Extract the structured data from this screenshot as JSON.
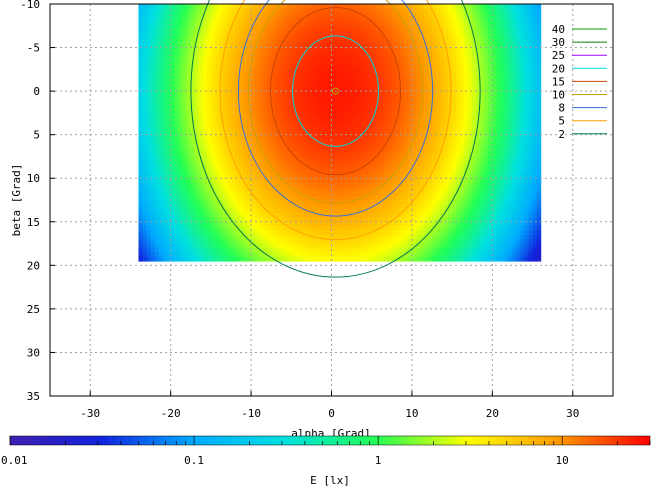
{
  "chart_data": {
    "type": "heatmap",
    "title": "",
    "xlabel": "alpha [Grad]",
    "ylabel": "beta [Grad]",
    "xlim": [
      -35,
      35
    ],
    "ylim": [
      -10,
      35
    ],
    "y_axis_inverted": true,
    "x_ticks": [
      "-30",
      "-20",
      "-10",
      "0",
      "10",
      "20",
      "30"
    ],
    "y_ticks": [
      "-10",
      "-5",
      "0",
      "5",
      "10",
      "15",
      "20",
      "25",
      "30",
      "35"
    ],
    "grid": true,
    "data_extent": {
      "alpha": [
        -24,
        26
      ],
      "beta": [
        -10,
        19.5
      ]
    },
    "peak": {
      "alpha": 0.5,
      "beta": 0,
      "value": 25
    },
    "colorbar": {
      "label": "E [lx]",
      "scale": "log",
      "range": [
        0.01,
        30
      ],
      "ticks": [
        "0.01",
        "0.1",
        "1",
        "10"
      ],
      "colors": [
        "#3e1fb0",
        "#1122dd",
        "#00aaff",
        "#00e0e0",
        "#22ff55",
        "#ffff00",
        "#ff9900",
        "#ff0000"
      ]
    },
    "contours": {
      "legend_position": "top-right",
      "levels": [
        {
          "label": "40",
          "color": "#00a000"
        },
        {
          "label": "30",
          "color": "#008000"
        },
        {
          "label": "25",
          "color": "#a000ff"
        },
        {
          "label": "20",
          "color": "#00d8d8"
        },
        {
          "label": "15",
          "color": "#c84400"
        },
        {
          "label": "10",
          "color": "#c8a000"
        },
        {
          "label": "8",
          "color": "#3a6cd8"
        },
        {
          "label": "5",
          "color": "#ffa000"
        },
        {
          "label": "2",
          "color": "#007a4a"
        }
      ]
    }
  }
}
